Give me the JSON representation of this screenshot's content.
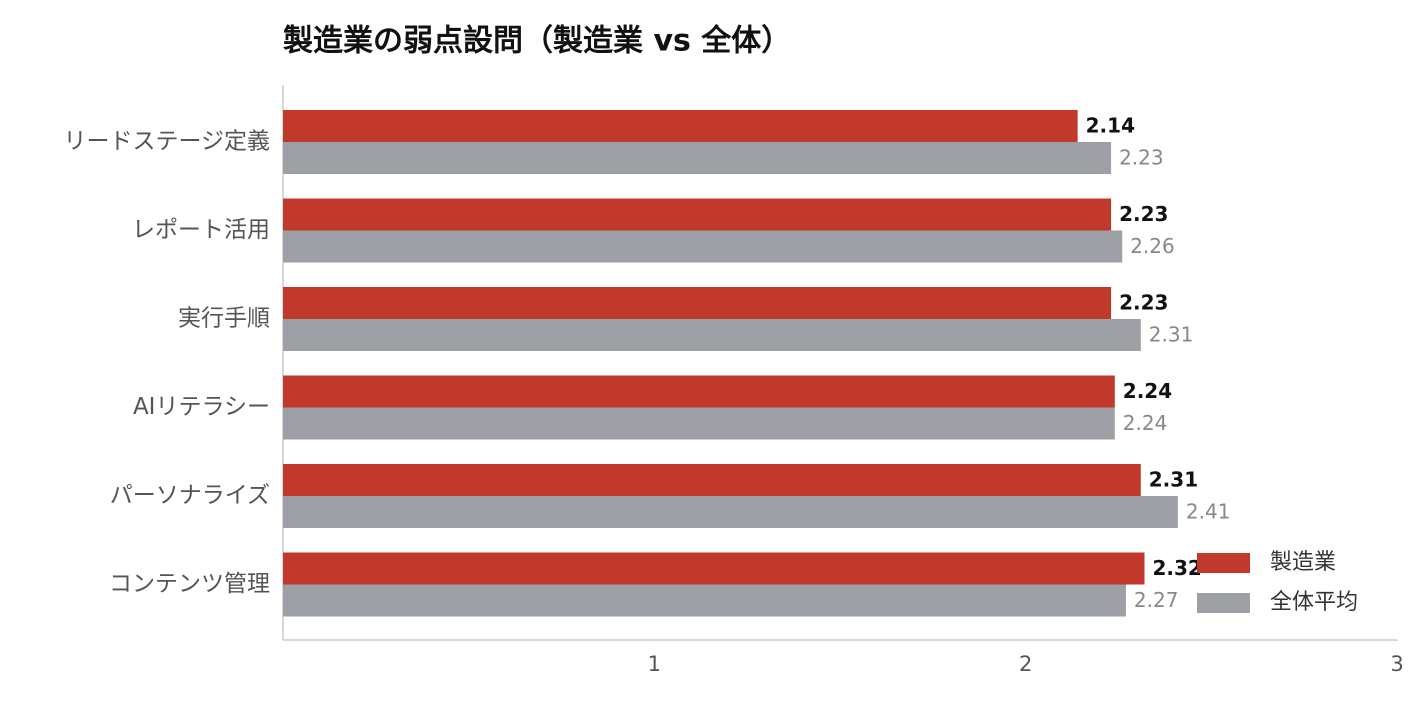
{
  "chart_data": {
    "type": "bar",
    "orientation": "horizontal",
    "title": "製造業の弱点設問（製造業 vs 全体）",
    "categories": [
      "リードステージ定義",
      "レポート活用",
      "実行手順",
      "AIリテラシー",
      "パーソナライズ",
      "コンテンツ管理"
    ],
    "series": [
      {
        "name": "製造業",
        "color": "#c0392b",
        "values": [
          2.14,
          2.23,
          2.23,
          2.24,
          2.31,
          2.32
        ]
      },
      {
        "name": "全体平均",
        "color": "#9da0a5",
        "values": [
          2.23,
          2.26,
          2.31,
          2.24,
          2.41,
          2.27
        ]
      }
    ],
    "xlim": [
      0,
      3
    ],
    "xticks": [
      1,
      2,
      3
    ],
    "legend": "lower right"
  }
}
